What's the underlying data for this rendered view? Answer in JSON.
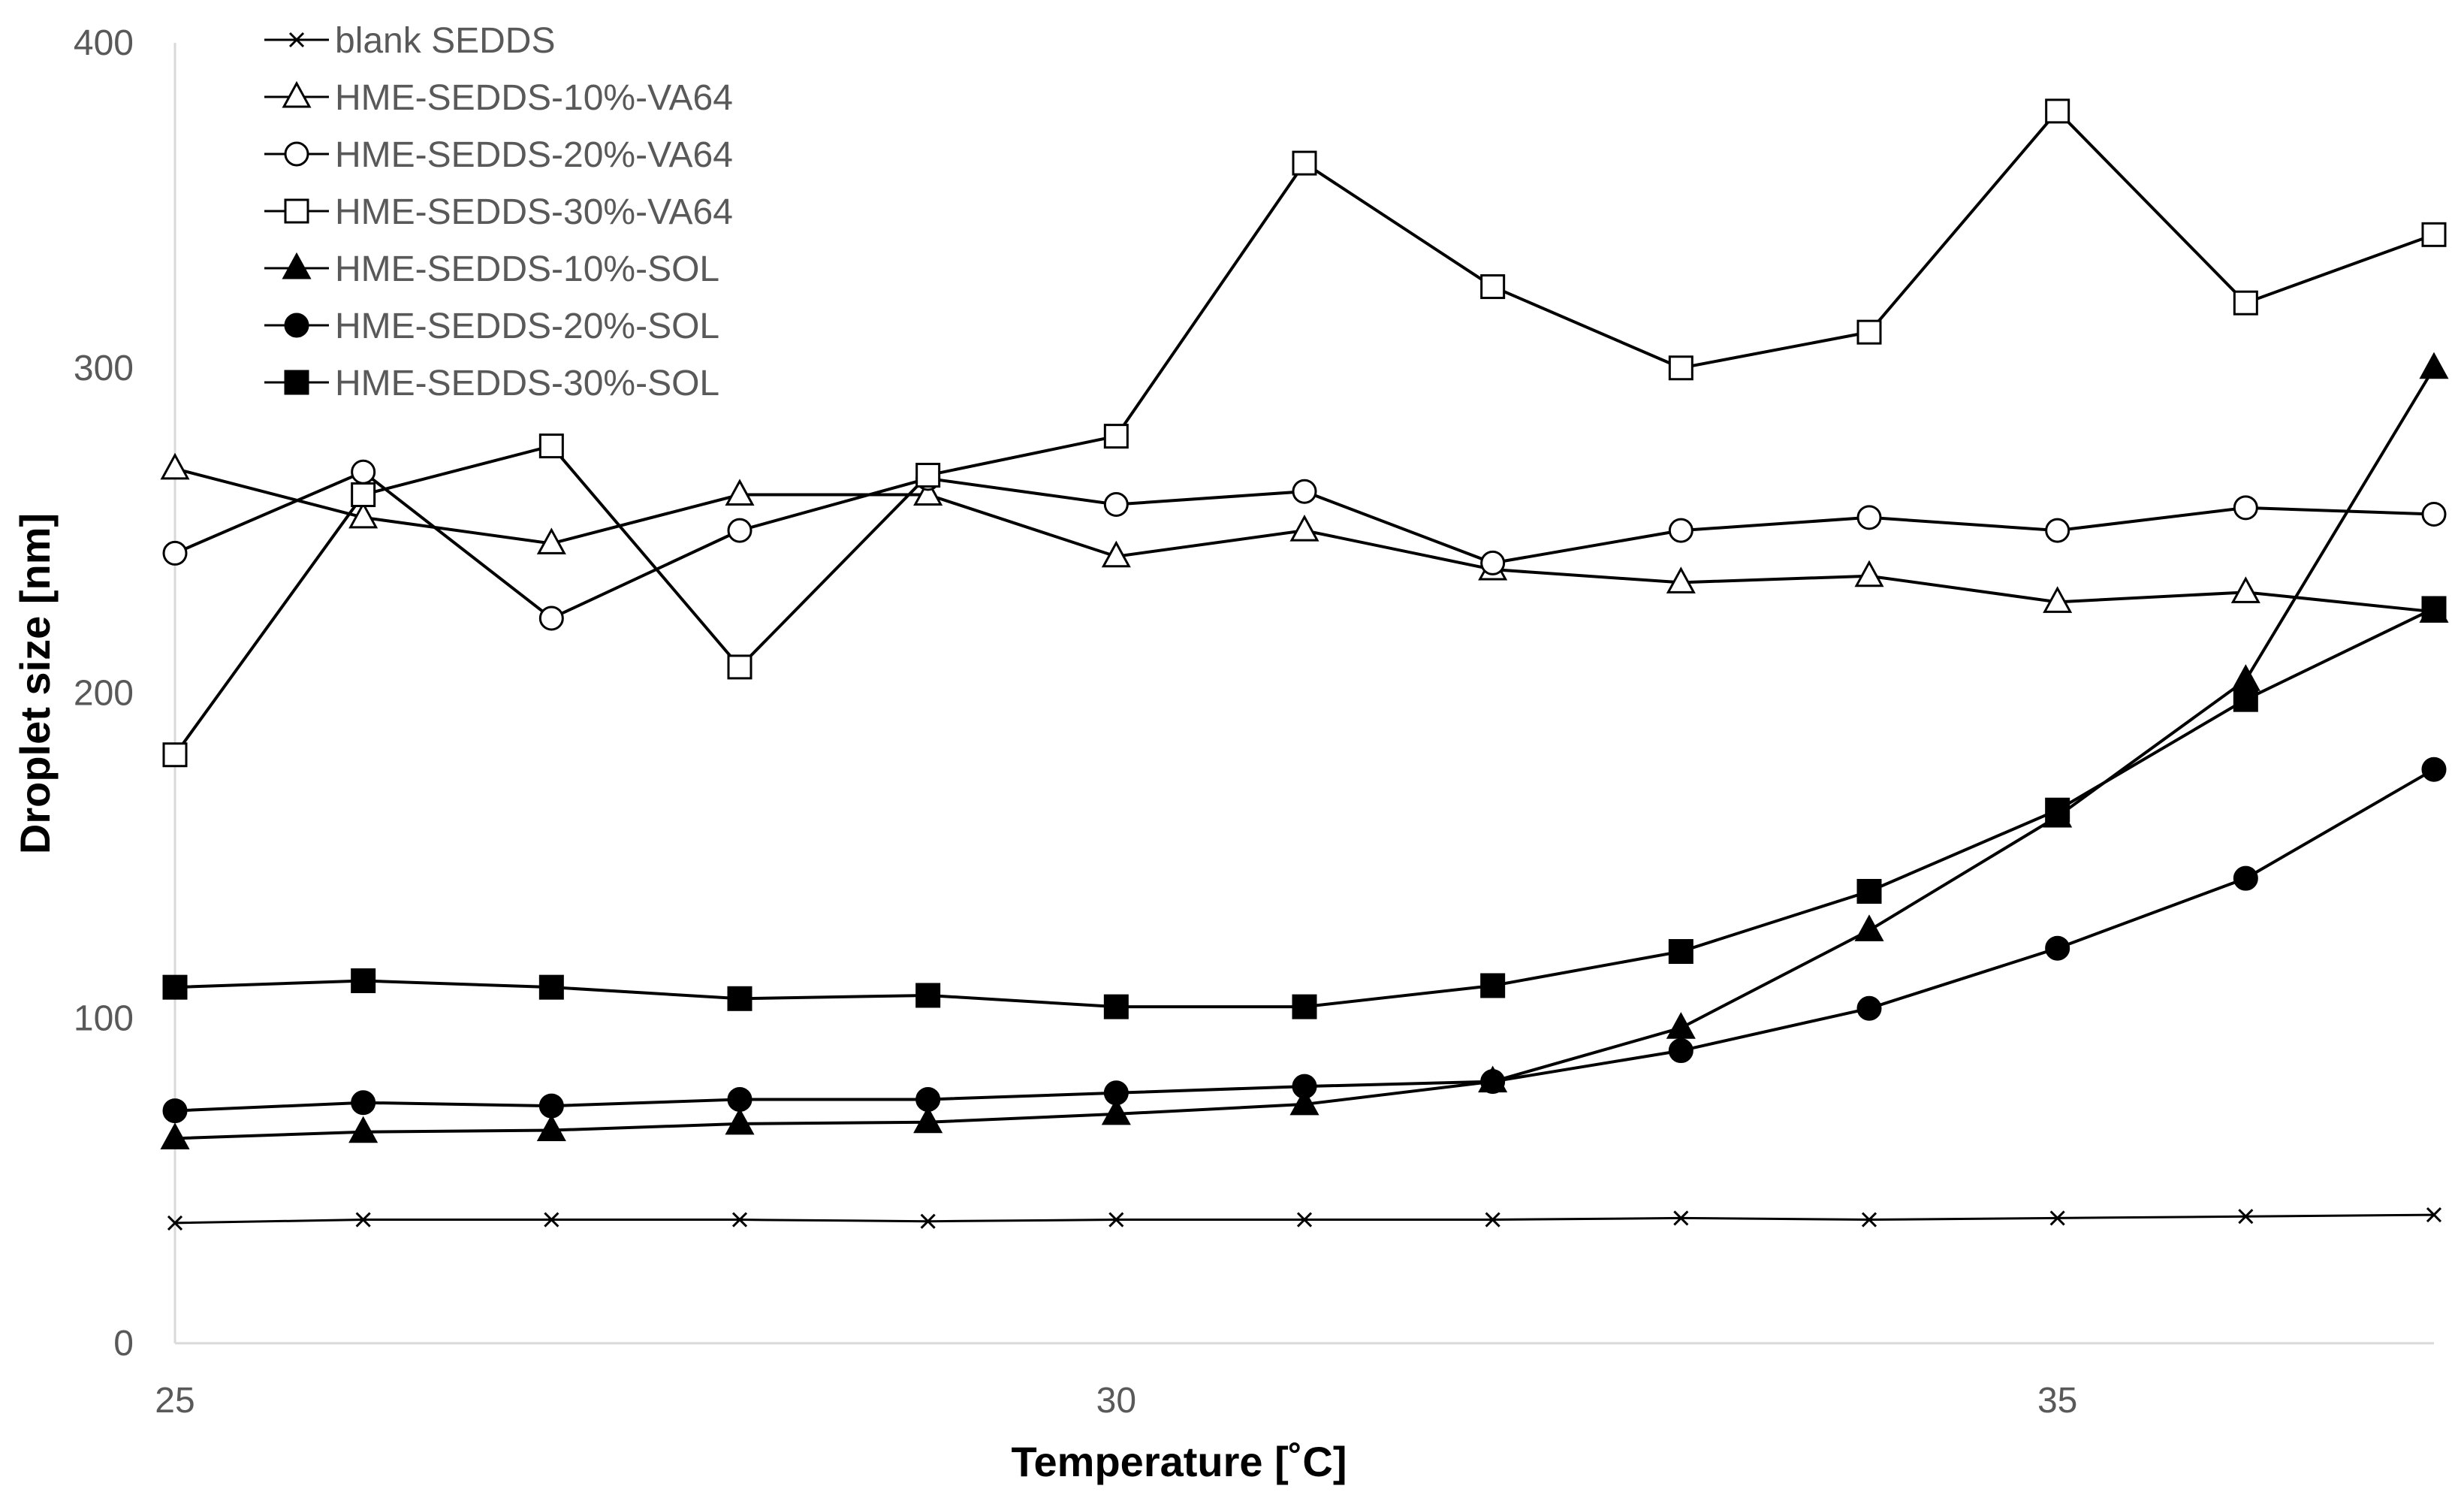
{
  "chart_data": {
    "type": "line",
    "title": "",
    "xlabel": "Temperature [˚C]",
    "ylabel": "Droplet size [nm]",
    "xlim": [
      25,
      37
    ],
    "ylim": [
      0,
      400
    ],
    "x_ticks": [
      25,
      30,
      35
    ],
    "x_tick_labels": [
      "25",
      "30",
      "35"
    ],
    "y_ticks": [
      0,
      100,
      200,
      300,
      400
    ],
    "y_tick_labels": [
      "0",
      "100",
      "200",
      "300",
      "400"
    ],
    "grid": false,
    "legend_position": "top-left",
    "x": [
      25,
      26,
      27,
      28,
      29,
      30,
      31,
      32,
      33,
      34,
      35,
      36,
      37
    ],
    "series": [
      {
        "name": "blank SEDDS",
        "marker": "x",
        "values": [
          37,
          38,
          38,
          38,
          37.5,
          38,
          38,
          38,
          38.5,
          38,
          38.5,
          39,
          39.5
        ]
      },
      {
        "name": "HME-SEDDS-10%-VA64",
        "marker": "triangle-open",
        "values": [
          269,
          254,
          246,
          261,
          261,
          242,
          250,
          238,
          234,
          236,
          228,
          231,
          225
        ]
      },
      {
        "name": "HME-SEDDS-20%-VA64",
        "marker": "circle-open",
        "values": [
          243,
          268,
          223,
          250,
          266,
          258,
          262,
          240,
          250,
          254,
          250,
          257,
          255
        ]
      },
      {
        "name": "HME-SEDDS-30%-VA64",
        "marker": "square-open",
        "values": [
          181,
          261,
          276,
          208,
          267,
          279,
          363,
          325,
          300,
          311,
          379,
          320,
          341
        ]
      },
      {
        "name": "HME-SEDDS-10%-SOL",
        "marker": "triangle-filled",
        "values": [
          63,
          65,
          65.5,
          67.5,
          68,
          70.5,
          73.5,
          80.5,
          97,
          127,
          162,
          204,
          300
        ]
      },
      {
        "name": "HME-SEDDS-20%-SOL",
        "marker": "circle-filled",
        "values": [
          71.5,
          74,
          73,
          75,
          75,
          77,
          79,
          80.5,
          90,
          103,
          121.5,
          143,
          176.5
        ]
      },
      {
        "name": "HME-SEDDS-30%-SOL",
        "marker": "square-filled",
        "values": [
          109.5,
          111.5,
          109.5,
          106,
          107,
          103.5,
          103.5,
          110,
          120.5,
          139,
          164,
          198,
          226
        ]
      }
    ]
  }
}
